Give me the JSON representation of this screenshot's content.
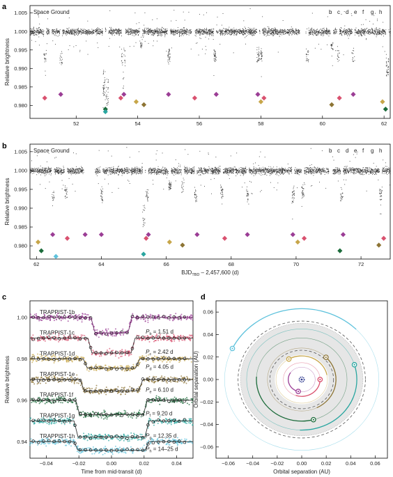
{
  "panels": {
    "a": "a",
    "b": "b",
    "c": "c",
    "d": "d"
  },
  "colors": {
    "b": "#9b3d95",
    "c": "#d9516f",
    "d": "#c7a64a",
    "e": "#8d7434",
    "f": "#1b6b3a",
    "g": "#2aa6a0",
    "h": "#5ec2dc",
    "star": "#2f3b8f",
    "data": "#333333"
  },
  "chart_data": [
    {
      "id": "a",
      "type": "scatter",
      "xlim": [
        50.5,
        62.2
      ],
      "ylim": [
        0.9765,
        1.007
      ],
      "yticks": [
        1.005,
        1.0,
        0.995,
        0.99,
        0.985,
        0.98
      ],
      "ytick_labels": [
        "1.005",
        "1.000",
        "0.995",
        "0.990",
        "0.985",
        "0.980"
      ],
      "xticks": [
        52,
        54,
        56,
        58,
        60,
        62
      ],
      "ylabel": "Relative brightness",
      "legend": {
        "space": "Space",
        "ground": "Ground"
      },
      "planet_legend": [
        "b",
        "c",
        "d",
        "e",
        "f",
        "g",
        "h"
      ],
      "gaps": [
        [
          51.12,
          51.2
        ],
        [
          55.75,
          55.85
        ],
        [
          59.25,
          59.45
        ]
      ],
      "dips": [
        {
          "x": 50.98,
          "depth": 0.008,
          "p": "b"
        },
        {
          "x": 51.5,
          "depth": 0.009,
          "p": "c"
        },
        {
          "x": 52.9,
          "depth": 0.018,
          "p": "f"
        },
        {
          "x": 53.0,
          "depth": 0.02,
          "p": "g"
        },
        {
          "x": 53.5,
          "depth": 0.009,
          "p": "b"
        },
        {
          "x": 53.55,
          "depth": 0.008,
          "p": "c"
        },
        {
          "x": 54.1,
          "depth": 0.004,
          "p": "d"
        },
        {
          "x": 55.0,
          "depth": 0.008,
          "p": "b"
        },
        {
          "x": 56.5,
          "depth": 0.008,
          "p": "b"
        },
        {
          "x": 57.9,
          "depth": 0.008,
          "p": "c"
        },
        {
          "x": 58.0,
          "depth": 0.008,
          "p": "b"
        },
        {
          "x": 59.5,
          "depth": 0.008,
          "p": "b"
        },
        {
          "x": 60.3,
          "depth": 0.005,
          "p": "e"
        },
        {
          "x": 60.5,
          "depth": 0.008,
          "p": "c"
        },
        {
          "x": 61.0,
          "depth": 0.008,
          "p": "b"
        },
        {
          "x": 62.1,
          "depth": 0.012,
          "p": "f"
        }
      ],
      "markers": [
        {
          "x": 50.98,
          "y": 0.982,
          "p": "c"
        },
        {
          "x": 51.5,
          "y": 0.983,
          "p": "b"
        },
        {
          "x": 52.95,
          "y": 0.979,
          "p": "f"
        },
        {
          "x": 52.95,
          "y": 0.9783,
          "p": "g"
        },
        {
          "x": 53.45,
          "y": 0.982,
          "p": "c"
        },
        {
          "x": 53.55,
          "y": 0.983,
          "p": "b"
        },
        {
          "x": 53.95,
          "y": 0.981,
          "p": "d"
        },
        {
          "x": 54.2,
          "y": 0.9802,
          "p": "e"
        },
        {
          "x": 55.0,
          "y": 0.983,
          "p": "b"
        },
        {
          "x": 55.85,
          "y": 0.982,
          "p": "c"
        },
        {
          "x": 56.55,
          "y": 0.983,
          "p": "b"
        },
        {
          "x": 57.9,
          "y": 0.983,
          "p": "b"
        },
        {
          "x": 58.0,
          "y": 0.981,
          "p": "d"
        },
        {
          "x": 58.1,
          "y": 0.982,
          "p": "c"
        },
        {
          "x": 60.3,
          "y": 0.9802,
          "p": "e"
        },
        {
          "x": 60.55,
          "y": 0.982,
          "p": "c"
        },
        {
          "x": 61.0,
          "y": 0.983,
          "p": "b"
        },
        {
          "x": 61.95,
          "y": 0.981,
          "p": "d"
        },
        {
          "x": 62.05,
          "y": 0.979,
          "p": "f"
        }
      ]
    },
    {
      "id": "b",
      "type": "scatter",
      "xlim": [
        61.8,
        72.9
      ],
      "ylim": [
        0.9765,
        1.007
      ],
      "yticks": [
        1.005,
        1.0,
        0.995,
        0.99,
        0.985,
        0.98
      ],
      "ytick_labels": [
        "1.005",
        "1.000",
        "0.995",
        "0.990",
        "0.985",
        "0.980"
      ],
      "xticks": [
        62,
        64,
        66,
        68,
        70,
        72
      ],
      "xlabel_main": "BJD",
      "xlabel_sub": "TBD",
      "xlabel_rest": " – 2,457,600 (d)",
      "ylabel": "Relative brightness",
      "legend": {
        "space": "Space",
        "ground": "Ground"
      },
      "planet_legend": [
        "b",
        "c",
        "d",
        "e",
        "f",
        "g",
        "h"
      ],
      "gaps": [
        [
          63.45,
          63.8
        ],
        [
          71.0,
          71.12
        ]
      ],
      "dips": [
        {
          "x": 62.5,
          "depth": 0.008,
          "p": "b"
        },
        {
          "x": 62.9,
          "depth": 0.007,
          "p": "c"
        },
        {
          "x": 63.5,
          "depth": 0.008,
          "p": "b"
        },
        {
          "x": 64.0,
          "depth": 0.008,
          "p": "b"
        },
        {
          "x": 65.3,
          "depth": 0.015,
          "p": "g"
        },
        {
          "x": 65.4,
          "depth": 0.008,
          "p": "b"
        },
        {
          "x": 66.1,
          "depth": 0.005,
          "p": "d"
        },
        {
          "x": 66.5,
          "depth": 0.005,
          "p": "e"
        },
        {
          "x": 66.9,
          "depth": 0.008,
          "p": "b"
        },
        {
          "x": 67.7,
          "depth": 0.007,
          "p": "c"
        },
        {
          "x": 68.5,
          "depth": 0.008,
          "p": "b"
        },
        {
          "x": 69.9,
          "depth": 0.008,
          "p": "b"
        },
        {
          "x": 70.2,
          "depth": 0.007,
          "p": "c"
        },
        {
          "x": 71.4,
          "depth": 0.008,
          "p": "b"
        },
        {
          "x": 72.6,
          "depth": 0.008,
          "p": "c"
        }
      ],
      "markers": [
        {
          "x": 62.05,
          "y": 0.981,
          "p": "d"
        },
        {
          "x": 62.15,
          "y": 0.9787,
          "p": "f"
        },
        {
          "x": 62.5,
          "y": 0.983,
          "p": "b"
        },
        {
          "x": 62.6,
          "y": 0.9772,
          "p": "h"
        },
        {
          "x": 62.95,
          "y": 0.982,
          "p": "c"
        },
        {
          "x": 63.5,
          "y": 0.983,
          "p": "b"
        },
        {
          "x": 64.0,
          "y": 0.983,
          "p": "b"
        },
        {
          "x": 65.3,
          "y": 0.9778,
          "p": "g"
        },
        {
          "x": 65.38,
          "y": 0.982,
          "p": "c"
        },
        {
          "x": 65.45,
          "y": 0.983,
          "p": "b"
        },
        {
          "x": 66.1,
          "y": 0.981,
          "p": "d"
        },
        {
          "x": 66.5,
          "y": 0.9802,
          "p": "e"
        },
        {
          "x": 66.95,
          "y": 0.983,
          "p": "b"
        },
        {
          "x": 67.8,
          "y": 0.982,
          "p": "c"
        },
        {
          "x": 68.5,
          "y": 0.983,
          "p": "b"
        },
        {
          "x": 69.9,
          "y": 0.983,
          "p": "b"
        },
        {
          "x": 70.05,
          "y": 0.981,
          "p": "d"
        },
        {
          "x": 70.25,
          "y": 0.982,
          "p": "c"
        },
        {
          "x": 71.35,
          "y": 0.9787,
          "p": "f"
        },
        {
          "x": 71.45,
          "y": 0.983,
          "p": "b"
        },
        {
          "x": 72.55,
          "y": 0.9802,
          "p": "e"
        },
        {
          "x": 72.7,
          "y": 0.982,
          "p": "c"
        }
      ]
    },
    {
      "id": "c",
      "type": "line",
      "xlim": [
        -0.05,
        0.05
      ],
      "ylim": [
        0.932,
        1.008
      ],
      "xticks": [
        -0.04,
        -0.02,
        0.0,
        0.02,
        0.04
      ],
      "xtick_labels": [
        "−0.04",
        "−0.02",
        "0.00",
        "0.02",
        "0.04"
      ],
      "yticks": [
        1.0,
        0.98,
        0.96,
        0.94
      ],
      "ytick_labels": [
        "1.00",
        "0.98",
        "0.96",
        "0.94"
      ],
      "xlabel": "Time from mid-transit (d)",
      "ylabel": "Relative brightness",
      "series": [
        {
          "name": "TRAPPIST-1b",
          "p": "b",
          "offset": 1.0,
          "depth": 0.0075,
          "half": 0.0126,
          "period_sym": "b",
          "period": " = 1.51 d"
        },
        {
          "name": "TRAPPIST-1c",
          "p": "c",
          "offset": 0.99,
          "depth": 0.0072,
          "half": 0.0145,
          "period_sym": "c",
          "period": " = 2.42 d"
        },
        {
          "name": "TRAPPIST-1d",
          "p": "d",
          "offset": 0.98,
          "depth": 0.0045,
          "half": 0.0173,
          "period_sym": "d",
          "period": " = 4.05 d"
        },
        {
          "name": "TRAPPIST-1e",
          "p": "e",
          "offset": 0.97,
          "depth": 0.0055,
          "half": 0.0192,
          "period_sym": "e",
          "period": " = 6.10 d"
        },
        {
          "name": "TRAPPIST-1f",
          "p": "f",
          "offset": 0.96,
          "depth": 0.007,
          "half": 0.022,
          "period_sym": "f",
          "period": " = 9.20 d"
        },
        {
          "name": "TRAPPIST-1g",
          "p": "g",
          "offset": 0.95,
          "depth": 0.0078,
          "half": 0.023,
          "period_sym": "g",
          "period": " = 12.35 d"
        },
        {
          "name": "TRAPPIST-1h",
          "p": "h",
          "offset": 0.94,
          "depth": 0.0042,
          "half": 0.023,
          "period_sym": "h",
          "period": " = 14–25 d"
        }
      ]
    },
    {
      "id": "d",
      "type": "scatter",
      "xlim": [
        -0.07,
        0.07
      ],
      "ylim": [
        -0.07,
        0.07
      ],
      "xticks": [
        -0.06,
        -0.04,
        -0.02,
        0.0,
        0.02,
        0.04,
        0.06
      ],
      "yticks": [
        0.06,
        0.04,
        0.02,
        0.0,
        -0.02,
        -0.04,
        -0.06
      ],
      "tick_labels": [
        "−0.06",
        "−0.04",
        "−0.02",
        "0.00",
        "0.02",
        "0.04",
        "0.06"
      ],
      "xlabel": "Orbital separation (AU)",
      "ylabel": "Orbital separation (AU)",
      "habitable_zone": [
        0.022,
        0.05
      ],
      "orbits": [
        {
          "p": "b",
          "a": 0.011,
          "angle_deg": 255
        },
        {
          "p": "c",
          "a": 0.015,
          "angle_deg": 0
        },
        {
          "p": "d",
          "a": 0.021,
          "angle_deg": 120
        },
        {
          "p": "e",
          "a": 0.028,
          "angle_deg": 45
        },
        {
          "p": "f",
          "a": 0.037,
          "angle_deg": 285
        },
        {
          "p": "g",
          "a": 0.045,
          "angle_deg": 17
        },
        {
          "p": "h",
          "a": 0.063,
          "angle_deg": 154
        }
      ],
      "dashed_orbits": [
        0.026,
        0.052
      ]
    }
  ]
}
